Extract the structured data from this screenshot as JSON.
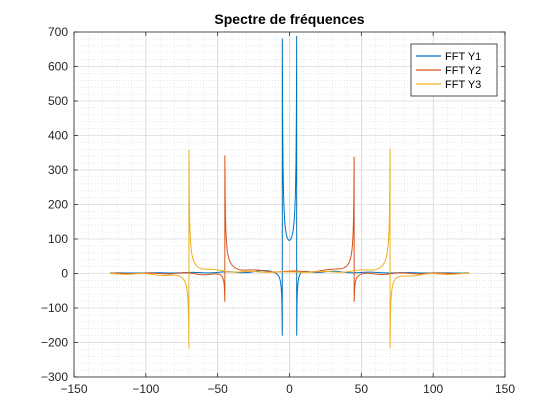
{
  "chart_data": {
    "type": "line",
    "title": "Spectre de fréquences",
    "xlabel": "",
    "ylabel": "",
    "xlim": [
      -150,
      150
    ],
    "ylim": [
      -300,
      700
    ],
    "xticks": [
      -150,
      -100,
      -50,
      0,
      50,
      100,
      150
    ],
    "yticks": [
      -300,
      -200,
      -100,
      0,
      100,
      200,
      300,
      400,
      500,
      600,
      700
    ],
    "grid": true,
    "minor_grid": true,
    "legend_position": "top-right",
    "x_range": [
      -125,
      125
    ],
    "series": [
      {
        "name": "FFT Y1",
        "color": "#0072BD",
        "peak_freq": 5,
        "peak_max": 660,
        "peak_min": -180
      },
      {
        "name": "FFT Y2",
        "color": "#D95319",
        "peak_freq": 45,
        "peak_max": 338,
        "peak_min": -82
      },
      {
        "name": "FFT Y3",
        "color": "#EDB120",
        "peak_freq": 70,
        "peak_max": 358,
        "peak_min": -217
      }
    ]
  }
}
